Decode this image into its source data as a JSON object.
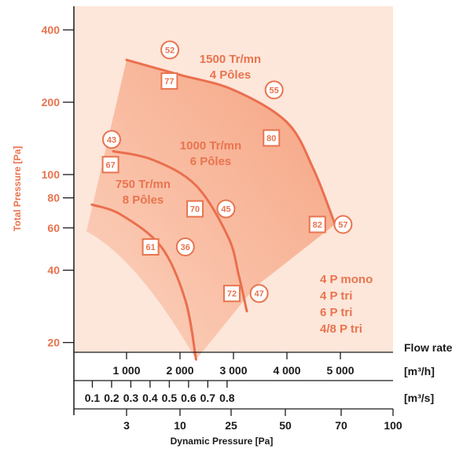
{
  "chart_data": {
    "type": "line",
    "title": "",
    "ylabel": "Total Pressure [Pa]",
    "xlabel": "Dynamic Pressure [Pa]",
    "y_scale": "log",
    "ylim": [
      17,
      480
    ],
    "yticks": [
      20,
      40,
      60,
      80,
      100,
      200,
      400
    ],
    "flow_axis_title": "Flow rate",
    "flow_m3h": {
      "unit": "[m³/h]",
      "ticks": [
        1000,
        2000,
        3000,
        4000,
        5000
      ],
      "tick_labels": [
        "1 000",
        "2 000",
        "3 000",
        "4 000",
        "5 000"
      ]
    },
    "flow_m3s": {
      "unit": "[m³/s]",
      "ticks": [
        0.1,
        0.2,
        0.3,
        0.4,
        0.5,
        0.6,
        0.7,
        0.8
      ],
      "tick_labels": [
        "0.1",
        "0.2",
        "0.3",
        "0.4",
        "0.5",
        "0.6",
        "0.7",
        "0.8"
      ]
    },
    "dynamic_pressure": {
      "ticks": [
        3,
        10,
        25,
        50,
        70,
        100
      ],
      "tick_labels": [
        "3",
        "10",
        "25",
        "50",
        "70",
        "100"
      ]
    },
    "series": [
      {
        "name": "1500 Tr/mn",
        "label_line2": "4 Pôles",
        "x": [
          1000,
          2000,
          3000,
          4000,
          4500,
          4900
        ],
        "y": [
          300,
          260,
          225,
          165,
          105,
          62
        ]
      },
      {
        "name": "1000 Tr/mn",
        "label_line2": "6 Pôles",
        "x": [
          750,
          1500,
          2300,
          2900,
          3100,
          3250
        ],
        "y": [
          125,
          115,
          90,
          55,
          38,
          27
        ]
      },
      {
        "name": "750 Tr/mn",
        "label_line2": "8 Pôles",
        "x": [
          350,
          900,
          1650,
          2100,
          2300
        ],
        "y": [
          75,
          68,
          50,
          30,
          17
        ]
      }
    ],
    "annotations": {
      "circles": [
        {
          "label": "52",
          "x": 1810,
          "y": 330
        },
        {
          "label": "55",
          "x": 3760,
          "y": 225
        },
        {
          "label": "43",
          "x": 720,
          "y": 140
        },
        {
          "label": "45",
          "x": 2860,
          "y": 72
        },
        {
          "label": "36",
          "x": 2100,
          "y": 50
        },
        {
          "label": "57",
          "x": 5050,
          "y": 62
        },
        {
          "label": "47",
          "x": 3480,
          "y": 32
        }
      ],
      "squares": [
        {
          "label": "77",
          "x": 1800,
          "y": 245
        },
        {
          "label": "80",
          "x": 3710,
          "y": 142
        },
        {
          "label": "67",
          "x": 700,
          "y": 110
        },
        {
          "label": "70",
          "x": 2280,
          "y": 72
        },
        {
          "label": "61",
          "x": 1450,
          "y": 50
        },
        {
          "label": "82",
          "x": 4570,
          "y": 62
        },
        {
          "label": "72",
          "x": 2970,
          "y": 32
        }
      ]
    },
    "motor_legend": [
      "4 P mono",
      "4 P tri",
      "6 P tri",
      "4/8 P tri"
    ]
  },
  "colors": {
    "accent": "#e8744f",
    "curve": "#ea6f4e",
    "panel": "#fde6da",
    "area_dark": "#f7a786"
  }
}
